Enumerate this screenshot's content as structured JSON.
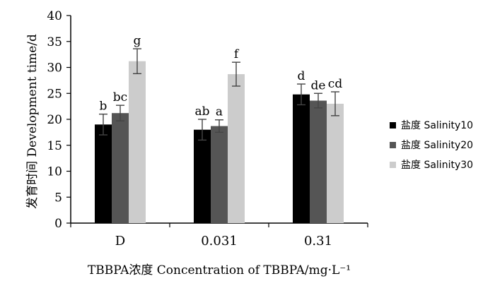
{
  "chart_data": {
    "type": "bar",
    "categories": [
      "D",
      "0.031",
      "0.31"
    ],
    "series": [
      {
        "name": "盐度 Salinity10",
        "color": "#000000",
        "values": [
          19.0,
          18.0,
          24.8
        ],
        "errors": [
          2.0,
          2.0,
          2.0
        ],
        "labels": [
          "b",
          "ab",
          "d"
        ]
      },
      {
        "name": "盐度 Salinity20",
        "color": "#555555",
        "values": [
          21.2,
          18.7,
          23.6
        ],
        "errors": [
          1.5,
          1.2,
          1.4
        ],
        "labels": [
          "bc",
          "a",
          "de"
        ]
      },
      {
        "name": "盐度 Salinity30",
        "color": "#cccccc",
        "values": [
          31.2,
          28.7,
          23.0
        ],
        "errors": [
          2.4,
          2.3,
          2.3
        ],
        "labels": [
          "g",
          "f",
          "cd"
        ]
      }
    ],
    "xlabel": "TBBPA浓度 Concentration of TBBPA/mg·L⁻¹",
    "ylabel": "发育时间 Development time/d",
    "ylim": [
      0,
      40
    ],
    "yticks": [
      0,
      5,
      10,
      15,
      20,
      25,
      30,
      35,
      40
    ],
    "grid": false,
    "legend_position": "right"
  }
}
